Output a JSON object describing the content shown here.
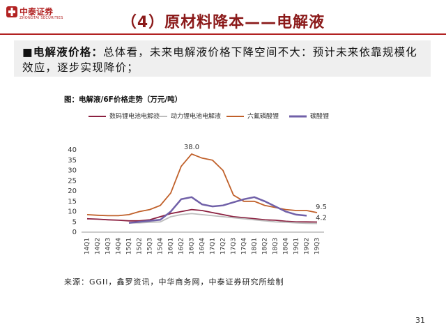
{
  "header": {
    "logo_text": "中泰证券",
    "logo_subtext": "ZHONGTAI SECURITIES",
    "title": "（4）原材料降本——电解液"
  },
  "summary": {
    "label": "电解液价格：",
    "text": "总体看，未来电解液价格下降空间不大：预计未来依靠规模化效应，逐步实现降价；"
  },
  "chart_data": {
    "type": "line",
    "title": "图：电解液/6F价格走势（万元/吨）",
    "categories": [
      "14Q1",
      "14Q2",
      "14Q3",
      "14Q4",
      "15Q1",
      "15Q2",
      "15Q3",
      "15Q4",
      "16Q1",
      "16Q2",
      "16Q3",
      "16Q4",
      "17Q1",
      "17Q2",
      "17Q3",
      "17Q4",
      "18Q1",
      "18Q2",
      "18Q3",
      "18Q4",
      "19Q1",
      "19Q2",
      "19Q3"
    ],
    "series": [
      {
        "name": "数码锂电池电解液",
        "color": "#8b2040",
        "values": [
          6.5,
          6.3,
          6,
          5.8,
          5.5,
          5.5,
          6,
          7.5,
          9,
          10,
          11,
          10.5,
          9.5,
          8.5,
          7.5,
          7,
          6.5,
          6,
          5.8,
          5.3,
          5,
          5,
          4.9
        ]
      },
      {
        "name": "动力锂电池电解液",
        "color": "#bdbdbd",
        "values": [
          null,
          null,
          null,
          null,
          4.5,
          4.5,
          4.8,
          5,
          7.5,
          8.5,
          9,
          8.5,
          8,
          7.5,
          7,
          6.5,
          6,
          5.5,
          5,
          4.8,
          4.5,
          4.3,
          4.2
        ],
        "value_labels": [
          null,
          null,
          null,
          null,
          null,
          null,
          null,
          null,
          null,
          null,
          null,
          null,
          null,
          null,
          null,
          null,
          null,
          null,
          null,
          null,
          null,
          null,
          "4.2"
        ]
      },
      {
        "name": "六氟磷酸锂",
        "color": "#c0602a",
        "values": [
          8.5,
          8.2,
          8,
          8,
          8.5,
          10,
          11,
          13,
          19,
          32,
          38,
          36,
          35,
          30,
          18,
          15,
          15,
          13,
          12,
          11,
          10.5,
          10.5,
          9.5
        ],
        "value_labels": [
          null,
          null,
          null,
          null,
          null,
          null,
          null,
          null,
          null,
          null,
          "38.0",
          null,
          null,
          null,
          null,
          null,
          null,
          null,
          null,
          null,
          null,
          null,
          "9.5"
        ]
      },
      {
        "name": "碳酸锂",
        "color": "#7060a8",
        "values": [
          null,
          null,
          null,
          null,
          4.5,
          5,
          5.5,
          6,
          10,
          16,
          17,
          13.5,
          12.5,
          13,
          14.5,
          16,
          17,
          15,
          12.5,
          10,
          8.5,
          8,
          null
        ]
      }
    ],
    "ylim": [
      0,
      40
    ],
    "yticks": [
      0,
      5,
      10,
      15,
      20,
      25,
      30,
      35,
      40
    ],
    "grid": false,
    "legend": "top"
  },
  "source": "来源：GGII，鑫罗资讯，中华商务网，中泰证券研究所绘制",
  "page_number": "31"
}
